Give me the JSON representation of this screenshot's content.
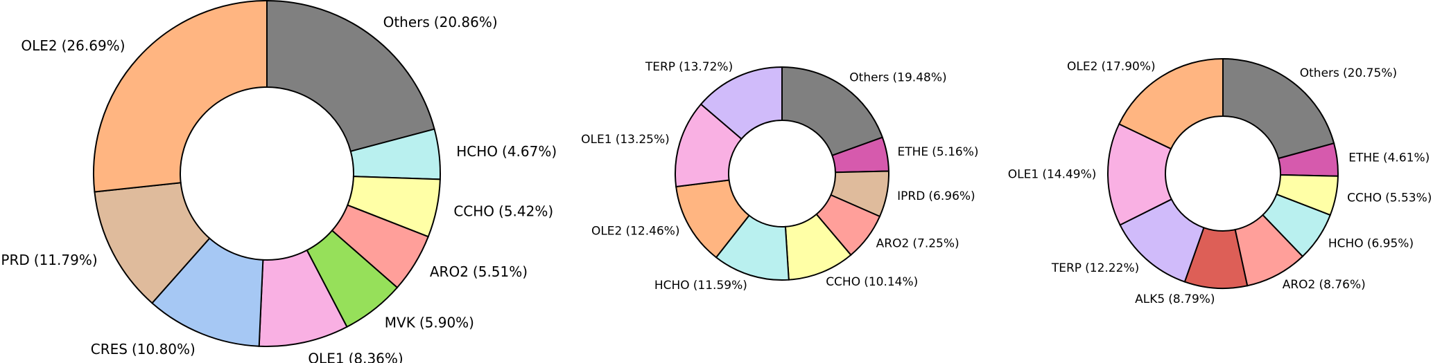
{
  "chart_data": [
    {
      "type": "donut",
      "categories": [
        "Others",
        "HCHO",
        "CCHO",
        "ARO2",
        "MVK",
        "OLE1",
        "CRES",
        "IPRD",
        "OLE2"
      ],
      "values": [
        20.86,
        4.67,
        5.42,
        5.51,
        5.9,
        8.36,
        10.8,
        11.79,
        26.69
      ],
      "value_labels": [
        "(20.86%)",
        "(4.67%)",
        "(5.42%)",
        "(5.51%)",
        "(5.90%)",
        "(8.36%)",
        "(10.80%)",
        "(11.79%)",
        "(26.69%)"
      ],
      "colors": [
        "#808080",
        "#b9f0ef",
        "#ffffa6",
        "#ff9f9a",
        "#96e05a",
        "#f9b0e3",
        "#a6c8f4",
        "#dfbb9c",
        "#ffb581"
      ]
    },
    {
      "type": "donut",
      "categories": [
        "Others",
        "ETHE",
        "IPRD",
        "ARO2",
        "CCHO",
        "HCHO",
        "OLE2",
        "OLE1",
        "TERP"
      ],
      "values": [
        19.48,
        5.16,
        6.96,
        7.25,
        10.14,
        11.59,
        12.46,
        13.25,
        13.72
      ],
      "value_labels": [
        "(19.48%)",
        "(5.16%)",
        "(6.96%)",
        "(7.25%)",
        "(10.14%)",
        "(11.59%)",
        "(12.46%)",
        "(13.25%)",
        "(13.72%)"
      ],
      "colors": [
        "#808080",
        "#d65aad",
        "#dfbb9c",
        "#ff9f9a",
        "#ffffa6",
        "#b9f0ef",
        "#ffb581",
        "#f9b0e3",
        "#d0bbfa"
      ]
    },
    {
      "type": "donut",
      "categories": [
        "Others",
        "ETHE",
        "CCHO",
        "HCHO",
        "ARO2",
        "ALK5",
        "TERP",
        "OLE1",
        "OLE2"
      ],
      "values": [
        20.75,
        4.61,
        5.53,
        6.95,
        8.76,
        8.79,
        12.22,
        14.49,
        17.9
      ],
      "value_labels": [
        "(20.75%)",
        "(4.61%)",
        "(5.53%)",
        "(6.95%)",
        "(8.76%)",
        "(8.79%)",
        "(12.22%)",
        "(14.49%)",
        "(17.90%)"
      ],
      "colors": [
        "#808080",
        "#d65aad",
        "#ffffa6",
        "#b9f0ef",
        "#ff9f9a",
        "#dd5f57",
        "#d0bbfa",
        "#f9b0e3",
        "#ffb581"
      ]
    }
  ]
}
